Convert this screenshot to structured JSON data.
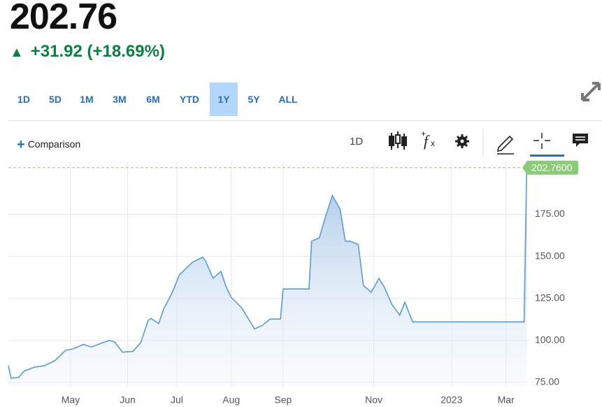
{
  "header": {
    "price": "202.76",
    "change": "+31.92 (+18.69%)"
  },
  "ranges": [
    "1D",
    "5D",
    "1M",
    "3M",
    "6M",
    "YTD",
    "1Y",
    "5Y",
    "ALL"
  ],
  "selected_range_index": 6,
  "toolbar": {
    "comparison": "Comparison",
    "interval": "1D"
  },
  "chart_data": {
    "type": "line",
    "color": "#5b9bd5",
    "x": [
      0,
      1,
      4,
      6,
      10,
      14,
      18,
      22,
      25,
      29,
      32,
      36,
      39,
      41,
      44,
      48,
      51,
      54,
      55,
      58,
      60,
      63,
      66,
      68,
      71,
      75,
      76,
      79,
      82,
      84,
      86,
      90,
      93,
      95,
      98,
      101,
      105,
      106,
      116,
      117,
      120,
      122,
      125,
      128,
      130,
      132,
      135,
      137,
      140,
      143,
      145,
      148,
      151,
      153,
      156,
      175,
      199,
      200
    ],
    "values": [
      85,
      77.5,
      78,
      81.7,
      84,
      85,
      88,
      94,
      95,
      97.6,
      96,
      98.4,
      100,
      99,
      93,
      93.4,
      98.4,
      112,
      113,
      110,
      119,
      127.7,
      139,
      142,
      146.5,
      149.5,
      147.4,
      137,
      141,
      131.9,
      125.6,
      119.4,
      111.8,
      106.8,
      108.9,
      112.7,
      112.7,
      130.6,
      130.6,
      159,
      161,
      171.7,
      186.3,
      178,
      159,
      159,
      157,
      132.7,
      128.6,
      136.9,
      131.9,
      121.4,
      115,
      122.7,
      111,
      111,
      111,
      202.76
    ],
    "xlim": [
      0,
      201
    ],
    "xticks": [
      {
        "value": 24,
        "label": "May"
      },
      {
        "value": 46,
        "label": "Jun"
      },
      {
        "value": 65,
        "label": "Jul"
      },
      {
        "value": 86,
        "label": "Aug"
      },
      {
        "value": 106,
        "label": "Sep"
      },
      {
        "value": 141,
        "label": "Nov"
      },
      {
        "value": 171,
        "label": "2023"
      },
      {
        "value": 192,
        "label": "Mar"
      }
    ],
    "ylim": [
      72,
      206
    ],
    "yticks": [
      {
        "value": 75,
        "label": "75.00"
      },
      {
        "value": 100,
        "label": "100.00"
      },
      {
        "value": 125,
        "label": "125.00"
      },
      {
        "value": 150,
        "label": "150.00"
      },
      {
        "value": 175,
        "label": "175.00"
      }
    ],
    "reference_line": {
      "value": 202.76,
      "label": "202.7600",
      "color": "#8cc97a"
    },
    "grid": true
  }
}
